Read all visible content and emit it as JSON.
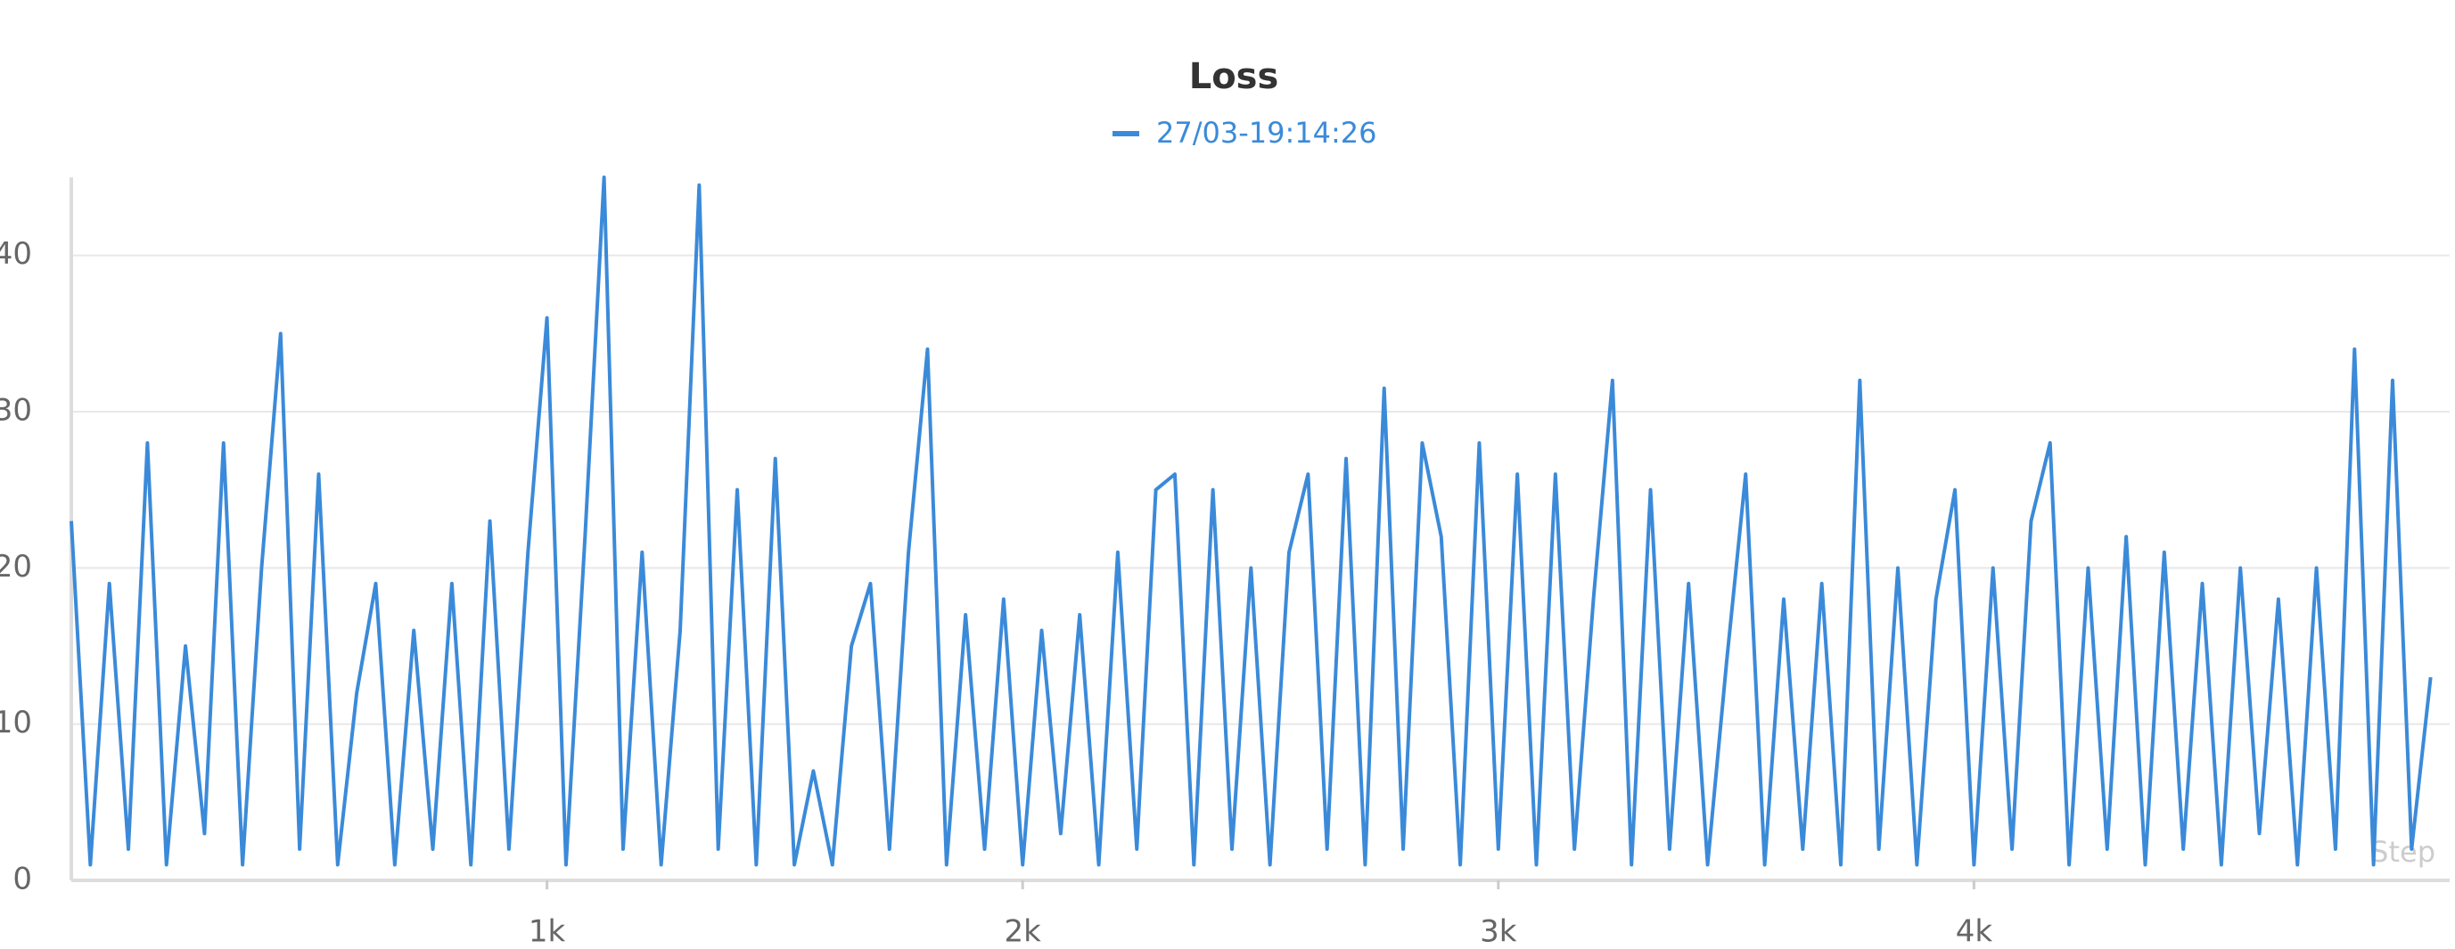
{
  "chart_data": {
    "type": "line",
    "title": "Loss",
    "x_label": "Step",
    "series": [
      {
        "name": "27/03-19:14:26",
        "color": "#3b8ad9",
        "x": [
          0,
          40,
          80,
          120,
          160,
          200,
          240,
          280,
          320,
          360,
          400,
          440,
          480,
          520,
          560,
          600,
          640,
          680,
          720,
          760,
          800,
          840,
          880,
          920,
          960,
          1000,
          1040,
          1080,
          1120,
          1160,
          1200,
          1240,
          1280,
          1320,
          1360,
          1400,
          1440,
          1480,
          1520,
          1560,
          1600,
          1640,
          1680,
          1720,
          1760,
          1800,
          1840,
          1880,
          1920,
          1960,
          2000,
          2040,
          2080,
          2120,
          2160,
          2200,
          2240,
          2280,
          2320,
          2360,
          2400,
          2440,
          2480,
          2520,
          2560,
          2600,
          2640,
          2680,
          2720,
          2760,
          2800,
          2840,
          2880,
          2920,
          2960,
          3000,
          3040,
          3080,
          3120,
          3160,
          3200,
          3240,
          3280,
          3320,
          3360,
          3400,
          3440,
          3480,
          3520,
          3560,
          3600,
          3640,
          3680,
          3720,
          3760,
          3800,
          3840,
          3880,
          3920,
          3960,
          4000,
          4040,
          4080,
          4120,
          4160,
          4200,
          4240,
          4280,
          4320,
          4360,
          4400,
          4440,
          4480,
          4520,
          4560,
          4600,
          4640,
          4680,
          4720,
          4760,
          4800,
          4840,
          4880,
          4920,
          4960
        ],
        "values": [
          23,
          1,
          19,
          2,
          28,
          1,
          15,
          3,
          28,
          1,
          20,
          35,
          2,
          26,
          1,
          12,
          19,
          1,
          16,
          2,
          19,
          1,
          23,
          2,
          21,
          36,
          1,
          22,
          45,
          2,
          21,
          1,
          16,
          44.5,
          2,
          25,
          1,
          27,
          1,
          7,
          1,
          15,
          19,
          2,
          21,
          34,
          1,
          17,
          2,
          18,
          1,
          16,
          3,
          17,
          1,
          21,
          2,
          25,
          26,
          1,
          25,
          2,
          20,
          1,
          21,
          26,
          2,
          27,
          1,
          31.5,
          2,
          28,
          22,
          1,
          28,
          2,
          26,
          1,
          26,
          2,
          18,
          32,
          1,
          25,
          2,
          19,
          1,
          14,
          26,
          1,
          18,
          2,
          19,
          1,
          32,
          2,
          20,
          1,
          18,
          25,
          1,
          20,
          2,
          23,
          28,
          1,
          20,
          2,
          22,
          1,
          21,
          2,
          19,
          1,
          20,
          3,
          18,
          1,
          20,
          2,
          34,
          1,
          32,
          2,
          13
        ]
      }
    ],
    "xlim": [
      0,
      5000
    ],
    "xticks": [
      {
        "value": 1000,
        "label": "1k"
      },
      {
        "value": 2000,
        "label": "2k"
      },
      {
        "value": 3000,
        "label": "3k"
      },
      {
        "value": 4000,
        "label": "4k"
      }
    ],
    "ylim": [
      0,
      45
    ],
    "yticks": [
      0,
      10,
      20,
      30,
      40
    ],
    "grid": true
  }
}
